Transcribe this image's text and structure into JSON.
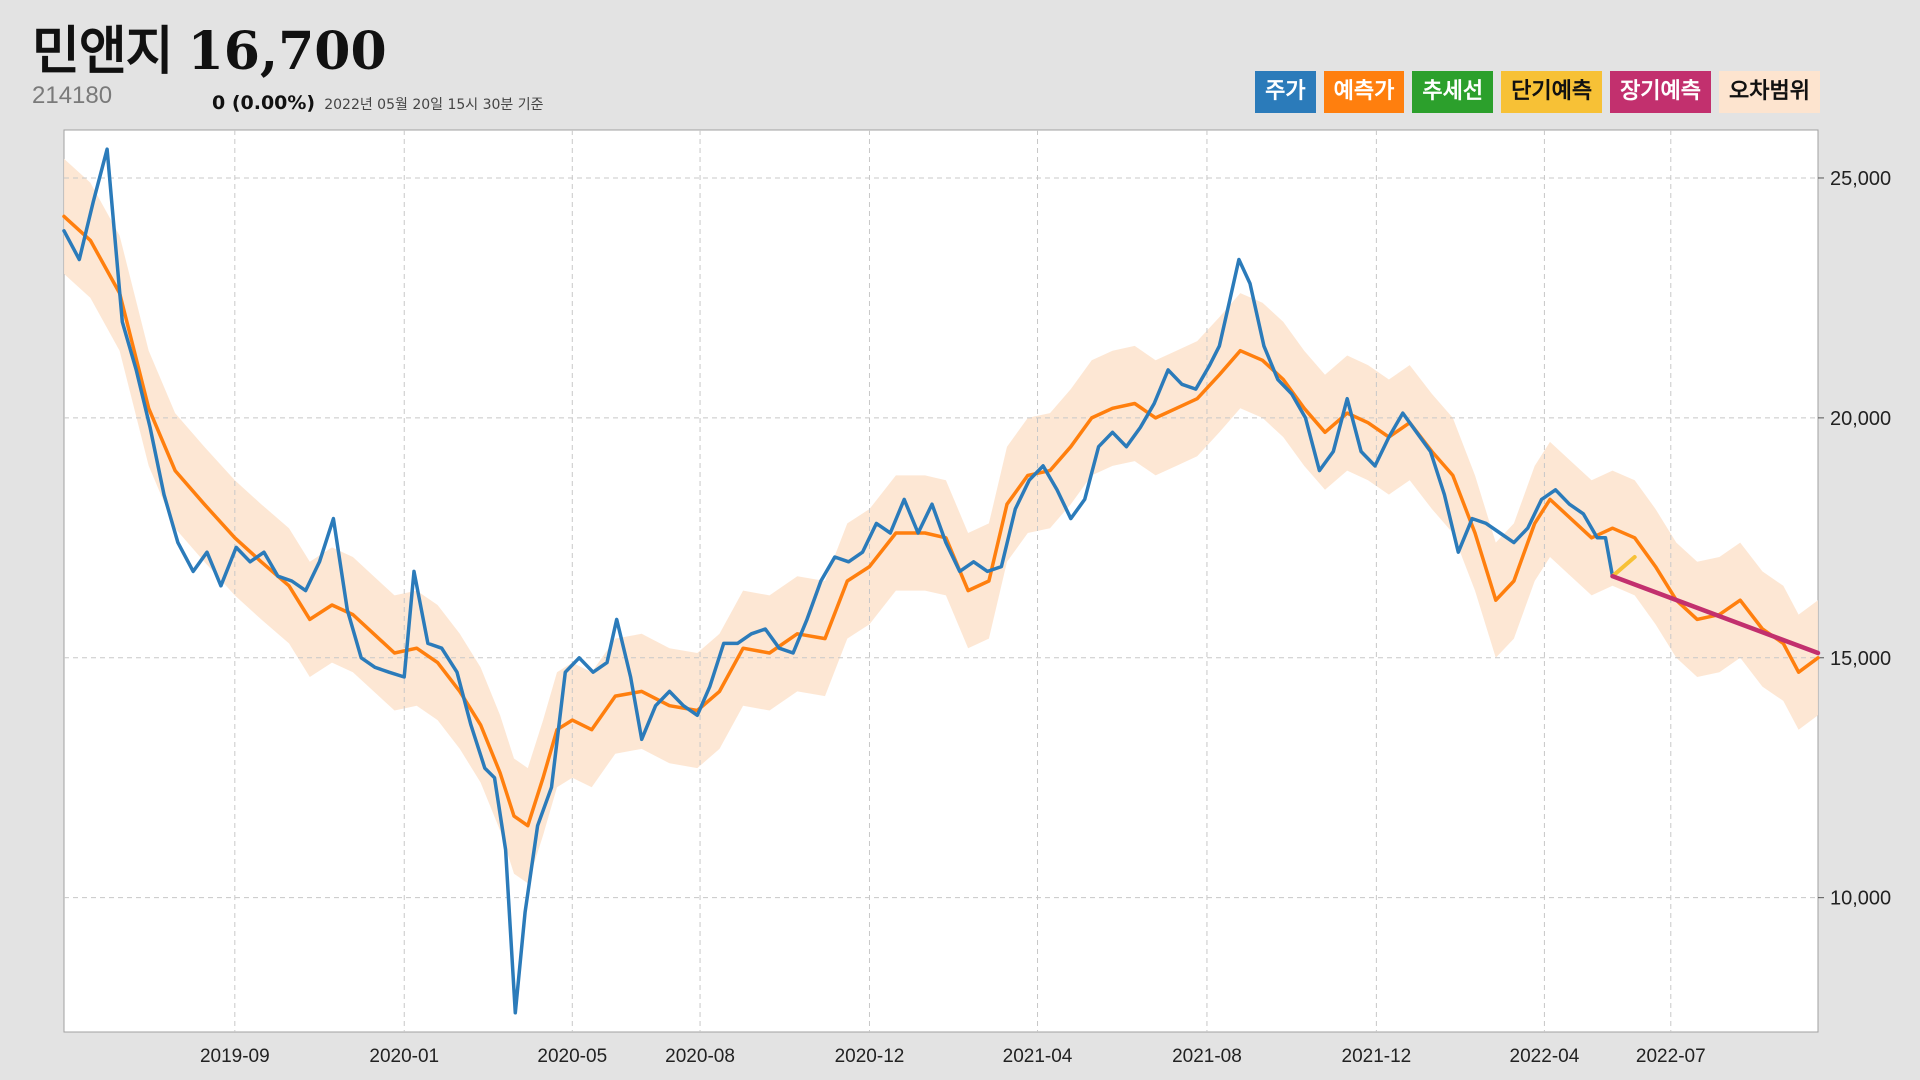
{
  "header": {
    "name": "민앤지",
    "price": "16,700",
    "code": "214180",
    "change": "0 (0.00%)",
    "as_of": "2022년 05월 20일 15시 30분 기준"
  },
  "legend": [
    {
      "label": "주가",
      "color": "#2b7bba",
      "text_dark": false
    },
    {
      "label": "예측가",
      "color": "#ff7f0e",
      "text_dark": false
    },
    {
      "label": "추세선",
      "color": "#2ca02c",
      "text_dark": false
    },
    {
      "label": "단기예측",
      "color": "#f7c136",
      "text_dark": true
    },
    {
      "label": "장기예측",
      "color": "#c2306e",
      "text_dark": false
    },
    {
      "label": "오차범위",
      "color": "#fde4cf",
      "text_dark": true
    }
  ],
  "chart_data": {
    "type": "line",
    "x_axis": {
      "ticks": [
        "2019-09",
        "2020-01",
        "2020-05",
        "2020-08",
        "2020-12",
        "2021-04",
        "2021-08",
        "2021-12",
        "2022-04",
        "2022-07"
      ],
      "tick_dates": [
        "2019-09-01",
        "2020-01-01",
        "2020-05-01",
        "2020-08-01",
        "2020-12-01",
        "2021-04-01",
        "2021-08-01",
        "2021-12-01",
        "2022-04-01",
        "2022-07-01"
      ],
      "range": [
        "2019-05-01",
        "2022-10-15"
      ]
    },
    "y_axis": {
      "ticks": [
        10000,
        15000,
        20000,
        25000
      ],
      "tick_labels": [
        "10,000",
        "15,000",
        "20,000",
        "25,000"
      ],
      "range": [
        7200,
        26000
      ],
      "position": "right"
    },
    "grid": true,
    "series": [
      {
        "name": "주가",
        "color": "#2b7bba",
        "points": [
          [
            "2019-05-01",
            23900
          ],
          [
            "2019-05-12",
            23300
          ],
          [
            "2019-05-22",
            24500
          ],
          [
            "2019-06-01",
            25600
          ],
          [
            "2019-06-12",
            22000
          ],
          [
            "2019-06-22",
            21000
          ],
          [
            "2019-07-02",
            19800
          ],
          [
            "2019-07-12",
            18400
          ],
          [
            "2019-07-22",
            17400
          ],
          [
            "2019-08-02",
            16800
          ],
          [
            "2019-08-12",
            17200
          ],
          [
            "2019-08-22",
            16500
          ],
          [
            "2019-09-02",
            17300
          ],
          [
            "2019-09-12",
            17000
          ],
          [
            "2019-09-22",
            17200
          ],
          [
            "2019-10-02",
            16700
          ],
          [
            "2019-10-12",
            16600
          ],
          [
            "2019-10-22",
            16400
          ],
          [
            "2019-11-01",
            17000
          ],
          [
            "2019-11-11",
            17900
          ],
          [
            "2019-11-21",
            16000
          ],
          [
            "2019-12-01",
            15000
          ],
          [
            "2019-12-11",
            14800
          ],
          [
            "2019-12-21",
            14700
          ],
          [
            "2020-01-01",
            14600
          ],
          [
            "2020-01-08",
            16800
          ],
          [
            "2020-01-18",
            15300
          ],
          [
            "2020-01-28",
            15200
          ],
          [
            "2020-02-08",
            14700
          ],
          [
            "2020-02-18",
            13600
          ],
          [
            "2020-02-28",
            12700
          ],
          [
            "2020-03-06",
            12500
          ],
          [
            "2020-03-14",
            11000
          ],
          [
            "2020-03-21",
            7600
          ],
          [
            "2020-03-28",
            9700
          ],
          [
            "2020-04-06",
            11500
          ],
          [
            "2020-04-16",
            12300
          ],
          [
            "2020-04-26",
            14700
          ],
          [
            "2020-05-06",
            15000
          ],
          [
            "2020-05-16",
            14700
          ],
          [
            "2020-05-26",
            14900
          ],
          [
            "2020-06-02",
            15800
          ],
          [
            "2020-06-12",
            14600
          ],
          [
            "2020-06-20",
            13300
          ],
          [
            "2020-06-30",
            14000
          ],
          [
            "2020-07-10",
            14300
          ],
          [
            "2020-07-20",
            14000
          ],
          [
            "2020-07-30",
            13800
          ],
          [
            "2020-08-08",
            14400
          ],
          [
            "2020-08-18",
            15300
          ],
          [
            "2020-08-28",
            15300
          ],
          [
            "2020-09-07",
            15500
          ],
          [
            "2020-09-17",
            15600
          ],
          [
            "2020-09-27",
            15200
          ],
          [
            "2020-10-07",
            15100
          ],
          [
            "2020-10-17",
            15800
          ],
          [
            "2020-10-27",
            16600
          ],
          [
            "2020-11-06",
            17100
          ],
          [
            "2020-11-16",
            17000
          ],
          [
            "2020-11-26",
            17200
          ],
          [
            "2020-12-06",
            17800
          ],
          [
            "2020-12-16",
            17600
          ],
          [
            "2020-12-26",
            18300
          ],
          [
            "2021-01-05",
            17600
          ],
          [
            "2021-01-15",
            18200
          ],
          [
            "2021-01-25",
            17400
          ],
          [
            "2021-02-04",
            16800
          ],
          [
            "2021-02-14",
            17000
          ],
          [
            "2021-02-24",
            16800
          ],
          [
            "2021-03-06",
            16900
          ],
          [
            "2021-03-16",
            18100
          ],
          [
            "2021-03-26",
            18700
          ],
          [
            "2021-04-05",
            19000
          ],
          [
            "2021-04-15",
            18500
          ],
          [
            "2021-04-25",
            17900
          ],
          [
            "2021-05-05",
            18300
          ],
          [
            "2021-05-15",
            19400
          ],
          [
            "2021-05-25",
            19700
          ],
          [
            "2021-06-04",
            19400
          ],
          [
            "2021-06-14",
            19800
          ],
          [
            "2021-06-24",
            20300
          ],
          [
            "2021-07-04",
            21000
          ],
          [
            "2021-07-14",
            20700
          ],
          [
            "2021-07-24",
            20600
          ],
          [
            "2021-08-03",
            21100
          ],
          [
            "2021-08-10",
            21500
          ],
          [
            "2021-08-17",
            22400
          ],
          [
            "2021-08-24",
            23300
          ],
          [
            "2021-09-01",
            22800
          ],
          [
            "2021-09-11",
            21500
          ],
          [
            "2021-09-21",
            20800
          ],
          [
            "2021-10-01",
            20500
          ],
          [
            "2021-10-11",
            20000
          ],
          [
            "2021-10-21",
            18900
          ],
          [
            "2021-10-31",
            19300
          ],
          [
            "2021-11-10",
            20400
          ],
          [
            "2021-11-20",
            19300
          ],
          [
            "2021-11-30",
            19000
          ],
          [
            "2021-12-10",
            19600
          ],
          [
            "2021-12-20",
            20100
          ],
          [
            "2021-12-30",
            19700
          ],
          [
            "2022-01-09",
            19300
          ],
          [
            "2022-01-19",
            18400
          ],
          [
            "2022-01-29",
            17200
          ],
          [
            "2022-02-08",
            17900
          ],
          [
            "2022-02-18",
            17800
          ],
          [
            "2022-02-28",
            17600
          ],
          [
            "2022-03-10",
            17400
          ],
          [
            "2022-03-20",
            17700
          ],
          [
            "2022-03-30",
            18300
          ],
          [
            "2022-04-09",
            18500
          ],
          [
            "2022-04-19",
            18200
          ],
          [
            "2022-04-29",
            18000
          ],
          [
            "2022-05-09",
            17500
          ],
          [
            "2022-05-15",
            17500
          ],
          [
            "2022-05-20",
            16700
          ]
        ]
      },
      {
        "name": "예측가",
        "color": "#ff7f0e",
        "points": [
          [
            "2019-05-01",
            24200
          ],
          [
            "2019-05-20",
            23700
          ],
          [
            "2019-06-10",
            22600
          ],
          [
            "2019-07-01",
            20200
          ],
          [
            "2019-07-20",
            18900
          ],
          [
            "2019-08-10",
            18200
          ],
          [
            "2019-09-01",
            17500
          ],
          [
            "2019-09-20",
            17000
          ],
          [
            "2019-10-10",
            16500
          ],
          [
            "2019-10-25",
            15800
          ],
          [
            "2019-11-10",
            16100
          ],
          [
            "2019-11-25",
            15900
          ],
          [
            "2019-12-10",
            15500
          ],
          [
            "2019-12-25",
            15100
          ],
          [
            "2020-01-10",
            15200
          ],
          [
            "2020-01-25",
            14900
          ],
          [
            "2020-02-10",
            14300
          ],
          [
            "2020-02-25",
            13600
          ],
          [
            "2020-03-10",
            12600
          ],
          [
            "2020-03-20",
            11700
          ],
          [
            "2020-03-30",
            11500
          ],
          [
            "2020-04-10",
            12500
          ],
          [
            "2020-04-20",
            13500
          ],
          [
            "2020-05-01",
            13700
          ],
          [
            "2020-05-15",
            13500
          ],
          [
            "2020-06-01",
            14200
          ],
          [
            "2020-06-20",
            14300
          ],
          [
            "2020-07-10",
            14000
          ],
          [
            "2020-07-30",
            13900
          ],
          [
            "2020-08-15",
            14300
          ],
          [
            "2020-09-01",
            15200
          ],
          [
            "2020-09-20",
            15100
          ],
          [
            "2020-10-10",
            15500
          ],
          [
            "2020-10-30",
            15400
          ],
          [
            "2020-11-15",
            16600
          ],
          [
            "2020-12-01",
            16900
          ],
          [
            "2020-12-20",
            17600
          ],
          [
            "2021-01-10",
            17600
          ],
          [
            "2021-01-25",
            17500
          ],
          [
            "2021-02-10",
            16400
          ],
          [
            "2021-02-25",
            16600
          ],
          [
            "2021-03-10",
            18200
          ],
          [
            "2021-03-25",
            18800
          ],
          [
            "2021-04-10",
            18900
          ],
          [
            "2021-04-25",
            19400
          ],
          [
            "2021-05-10",
            20000
          ],
          [
            "2021-05-25",
            20200
          ],
          [
            "2021-06-10",
            20300
          ],
          [
            "2021-06-25",
            20000
          ],
          [
            "2021-07-10",
            20200
          ],
          [
            "2021-07-25",
            20400
          ],
          [
            "2021-08-10",
            20900
          ],
          [
            "2021-08-25",
            21400
          ],
          [
            "2021-09-10",
            21200
          ],
          [
            "2021-09-25",
            20800
          ],
          [
            "2021-10-10",
            20200
          ],
          [
            "2021-10-25",
            19700
          ],
          [
            "2021-11-10",
            20100
          ],
          [
            "2021-11-25",
            19900
          ],
          [
            "2021-12-10",
            19600
          ],
          [
            "2021-12-25",
            19900
          ],
          [
            "2022-01-10",
            19300
          ],
          [
            "2022-01-25",
            18800
          ],
          [
            "2022-02-10",
            17600
          ],
          [
            "2022-02-25",
            16200
          ],
          [
            "2022-03-10",
            16600
          ],
          [
            "2022-03-25",
            17800
          ],
          [
            "2022-04-05",
            18300
          ],
          [
            "2022-04-20",
            17900
          ],
          [
            "2022-05-05",
            17500
          ],
          [
            "2022-05-20",
            17700
          ],
          [
            "2022-06-05",
            17500
          ],
          [
            "2022-06-20",
            16900
          ],
          [
            "2022-07-05",
            16200
          ],
          [
            "2022-07-20",
            15800
          ],
          [
            "2022-08-05",
            15900
          ],
          [
            "2022-08-20",
            16200
          ],
          [
            "2022-09-05",
            15600
          ],
          [
            "2022-09-20",
            15300
          ],
          [
            "2022-10-01",
            14700
          ],
          [
            "2022-10-15",
            15000
          ]
        ]
      }
    ],
    "error_band": {
      "name": "오차범위",
      "color": "#fde4cf",
      "width": 1200
    },
    "short_term": {
      "name": "단기예측",
      "color": "#f7c136",
      "points": [
        [
          "2022-05-20",
          16700
        ],
        [
          "2022-06-05",
          17100
        ]
      ]
    },
    "long_term": {
      "name": "장기예측",
      "color": "#c2306e",
      "points": [
        [
          "2022-05-20",
          16700
        ],
        [
          "2022-10-15",
          15100
        ]
      ]
    }
  }
}
